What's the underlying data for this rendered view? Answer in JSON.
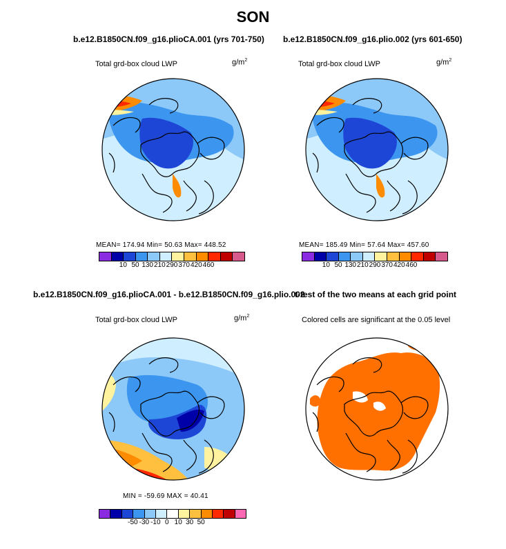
{
  "title": "SON",
  "panels": [
    {
      "subtitle": "b.e12.B1850CN.f09_g16.plioCA.001 (yrs 701-750)",
      "label": "Total grd-box cloud LWP",
      "units": "g/m",
      "units_sup": "2",
      "stats": "MEAN= 174.94  Min= 50.63  Max= 448.52"
    },
    {
      "subtitle": "b.e12.B1850CN.f09_g16.plio.002 (yrs 601-650)",
      "label": "Total grd-box cloud LWP",
      "units": "g/m",
      "units_sup": "2",
      "stats": "MEAN= 185.49  Min= 57.64  Max= 457.60"
    },
    {
      "subtitle": "b.e12.B1850CN.f09_g16.plioCA.001 - b.e12.B1850CN.f09_g16.plio.002",
      "label": "Total grd-box cloud LWP",
      "units": "g/m",
      "units_sup": "2",
      "stats": "MIN = -59.69  MAX = 40.41"
    },
    {
      "subtitle": "t-test of the two means at each grid point",
      "label": "Colored cells are significant at the 0.05 level"
    }
  ],
  "chart_data": [
    {
      "type": "heatmap",
      "title": "b.e12.B1850CN.f09_g16.plioCA.001 (yrs 701-750)",
      "variable": "Total grd-box cloud LWP",
      "units": "g/m2",
      "mean": 174.94,
      "min": 50.63,
      "max": 448.52,
      "levels": [
        "10",
        "50",
        "130",
        "210",
        "290",
        "370",
        "420",
        "460"
      ],
      "colors": [
        "#8a2be2",
        "#0000a8",
        "#1e46d6",
        "#3c96f0",
        "#8cc8f8",
        "#cfeeff",
        "#fff3a0",
        "#ffc040",
        "#ff8c00",
        "#ff2800",
        "#c00000",
        "#d75a8c"
      ]
    },
    {
      "type": "heatmap",
      "title": "b.e12.B1850CN.f09_g16.plio.002 (yrs 601-650)",
      "variable": "Total grd-box cloud LWP",
      "units": "g/m2",
      "mean": 185.49,
      "min": 57.64,
      "max": 457.6,
      "levels": [
        "10",
        "50",
        "130",
        "210",
        "290",
        "370",
        "420",
        "460"
      ],
      "colors": [
        "#8a2be2",
        "#0000a8",
        "#1e46d6",
        "#3c96f0",
        "#8cc8f8",
        "#cfeeff",
        "#fff3a0",
        "#ffc040",
        "#ff8c00",
        "#ff2800",
        "#c00000",
        "#d75a8c"
      ]
    },
    {
      "type": "heatmap",
      "title": "b.e12.B1850CN.f09_g16.plioCA.001 - b.e12.B1850CN.f09_g16.plio.002",
      "variable": "Total grd-box cloud LWP",
      "units": "g/m2",
      "min": -59.69,
      "max": 40.41,
      "levels": [
        "-50",
        "-30",
        "-10",
        "0",
        "10",
        "30",
        "50"
      ],
      "colors": [
        "#8a2be2",
        "#0000a8",
        "#1e46d6",
        "#3c96f0",
        "#8cc8f8",
        "#cfeeff",
        "#ffffff",
        "#fff3a0",
        "#ffc040",
        "#ff8c00",
        "#ff2800",
        "#c00000",
        "#ff69b4"
      ]
    },
    {
      "type": "heatmap",
      "title": "t-test of the two means at each grid point",
      "annotation": "Colored cells are significant at the 0.05 level",
      "significance_level": 0.05,
      "colors": [
        "#ff7000"
      ]
    }
  ]
}
